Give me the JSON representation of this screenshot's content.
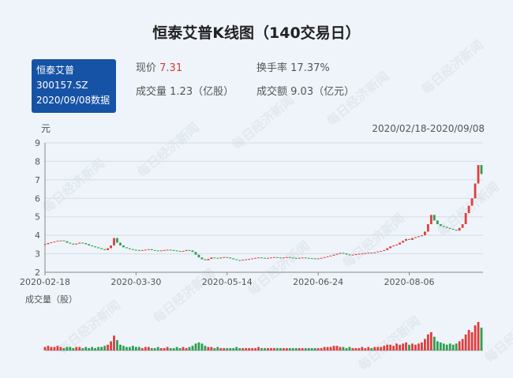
{
  "header": {
    "title": "恒泰艾普K线图（140交易日）",
    "badge": [
      "恒泰艾普",
      "300157.SZ",
      "2020/09/08数据"
    ],
    "info": [
      {
        "label": "现价",
        "value": "7.31"
      },
      {
        "label": "换手率",
        "value": "17.37%"
      },
      {
        "label": "成交量",
        "value": "1.23（亿股）"
      },
      {
        "label": "成交额",
        "value": "9.03（亿元）"
      }
    ]
  },
  "watermark": "每日经济新闻",
  "chart_data": {
    "type": "candlestick",
    "y_label": "元",
    "range_label": "2020/02/18-2020/09/08",
    "volume_label": "成交量（股）",
    "up_color": "#e03c3c",
    "down_color": "#2e9e4f",
    "ylim": [
      2,
      9
    ],
    "yticks": [
      2,
      3,
      4,
      5,
      6,
      7,
      8,
      9
    ],
    "grid": true,
    "volume_ylim": [
      0,
      25
    ],
    "categories": [
      "2020-02-18",
      null,
      null,
      null,
      null,
      null,
      null,
      null,
      null,
      null,
      null,
      null,
      null,
      null,
      null,
      null,
      null,
      null,
      null,
      null,
      null,
      null,
      null,
      null,
      null,
      null,
      null,
      null,
      null,
      "2020-03-30",
      null,
      null,
      null,
      null,
      null,
      null,
      null,
      null,
      null,
      null,
      null,
      null,
      null,
      null,
      null,
      null,
      null,
      null,
      null,
      null,
      null,
      null,
      null,
      null,
      null,
      null,
      null,
      null,
      "2020-05-14",
      null,
      null,
      null,
      null,
      null,
      null,
      null,
      null,
      null,
      null,
      null,
      null,
      null,
      null,
      null,
      null,
      null,
      null,
      null,
      null,
      null,
      null,
      null,
      null,
      null,
      null,
      null,
      null,
      "2020-06-24",
      null,
      null,
      null,
      null,
      null,
      null,
      null,
      null,
      null,
      null,
      null,
      null,
      null,
      null,
      null,
      null,
      null,
      null,
      null,
      null,
      null,
      null,
      null,
      null,
      null,
      null,
      null,
      null,
      "2020-08-06",
      null,
      null,
      null,
      null,
      null,
      null,
      null,
      null,
      null,
      null,
      null,
      null,
      null,
      null,
      null,
      null,
      null,
      null,
      null,
      null,
      null,
      null,
      null
    ],
    "open": [
      3.48,
      3.52,
      3.58,
      3.62,
      3.66,
      3.7,
      3.72,
      3.68,
      3.6,
      3.55,
      3.5,
      3.55,
      3.6,
      3.58,
      3.52,
      3.45,
      3.4,
      3.35,
      3.3,
      3.25,
      3.2,
      3.3,
      3.45,
      3.85,
      3.6,
      3.45,
      3.35,
      3.3,
      3.25,
      3.22,
      3.2,
      3.18,
      3.2,
      3.22,
      3.25,
      3.2,
      3.18,
      3.15,
      3.18,
      3.2,
      3.22,
      3.2,
      3.18,
      3.15,
      3.12,
      3.15,
      3.2,
      3.18,
      3.1,
      2.95,
      2.8,
      2.7,
      2.65,
      2.72,
      2.8,
      2.78,
      2.75,
      2.8,
      2.82,
      2.8,
      2.75,
      2.7,
      2.66,
      2.65,
      2.68,
      2.7,
      2.72,
      2.75,
      2.78,
      2.8,
      2.78,
      2.76,
      2.78,
      2.8,
      2.82,
      2.8,
      2.78,
      2.8,
      2.82,
      2.8,
      2.78,
      2.76,
      2.78,
      2.8,
      2.78,
      2.76,
      2.75,
      2.74,
      2.75,
      2.78,
      2.82,
      2.86,
      2.9,
      2.95,
      3.0,
      3.05,
      3.02,
      2.96,
      2.92,
      2.95,
      2.98,
      3.0,
      3.02,
      3.04,
      3.06,
      3.05,
      3.08,
      3.12,
      3.15,
      3.2,
      3.3,
      3.4,
      3.45,
      3.5,
      3.6,
      3.7,
      3.8,
      3.75,
      3.85,
      3.9,
      3.95,
      4.0,
      4.2,
      4.6,
      5.1,
      4.8,
      4.6,
      4.5,
      4.45,
      4.4,
      4.35,
      4.3,
      4.25,
      4.4,
      4.6,
      5.2,
      5.6,
      6.0,
      6.8,
      7.8
    ],
    "close": [
      3.52,
      3.58,
      3.62,
      3.66,
      3.7,
      3.72,
      3.68,
      3.6,
      3.55,
      3.5,
      3.55,
      3.6,
      3.58,
      3.52,
      3.45,
      3.4,
      3.35,
      3.3,
      3.25,
      3.2,
      3.3,
      3.45,
      3.85,
      3.6,
      3.45,
      3.35,
      3.3,
      3.25,
      3.22,
      3.2,
      3.18,
      3.2,
      3.22,
      3.25,
      3.2,
      3.18,
      3.15,
      3.18,
      3.2,
      3.22,
      3.2,
      3.18,
      3.15,
      3.12,
      3.15,
      3.2,
      3.18,
      3.1,
      2.95,
      2.8,
      2.7,
      2.65,
      2.72,
      2.8,
      2.78,
      2.75,
      2.8,
      2.82,
      2.8,
      2.75,
      2.7,
      2.66,
      2.65,
      2.68,
      2.7,
      2.72,
      2.75,
      2.78,
      2.8,
      2.78,
      2.76,
      2.78,
      2.8,
      2.82,
      2.8,
      2.78,
      2.8,
      2.82,
      2.8,
      2.78,
      2.76,
      2.78,
      2.8,
      2.78,
      2.76,
      2.75,
      2.74,
      2.75,
      2.78,
      2.82,
      2.86,
      2.9,
      2.95,
      3.0,
      3.05,
      3.02,
      2.96,
      2.92,
      2.95,
      2.98,
      3.0,
      3.02,
      3.04,
      3.06,
      3.05,
      3.08,
      3.12,
      3.15,
      3.2,
      3.3,
      3.4,
      3.45,
      3.5,
      3.6,
      3.7,
      3.8,
      3.75,
      3.85,
      3.9,
      3.95,
      4.0,
      4.2,
      4.6,
      5.1,
      4.8,
      4.6,
      4.5,
      4.45,
      4.4,
      4.35,
      4.3,
      4.25,
      4.4,
      4.6,
      5.2,
      5.6,
      6.0,
      6.8,
      7.8,
      7.31
    ],
    "volume": [
      3,
      4,
      3,
      3,
      4,
      3,
      2,
      3,
      3,
      2,
      3,
      3,
      2,
      3,
      2,
      3,
      2,
      3,
      3,
      4,
      5,
      8,
      13,
      9,
      5,
      4,
      3,
      3,
      4,
      3,
      3,
      2,
      3,
      3,
      2,
      2,
      3,
      2,
      2,
      3,
      2,
      2,
      3,
      2,
      3,
      2,
      3,
      4,
      6,
      7,
      6,
      4,
      3,
      3,
      2,
      3,
      2,
      2,
      2,
      2,
      2,
      3,
      2,
      2,
      2,
      2,
      2,
      2,
      3,
      2,
      2,
      2,
      2,
      2,
      2,
      2,
      2,
      2,
      2,
      2,
      2,
      2,
      2,
      2,
      2,
      2,
      2,
      2,
      2,
      3,
      3,
      3,
      4,
      4,
      3,
      3,
      2,
      3,
      2,
      2,
      2,
      3,
      2,
      3,
      2,
      3,
      3,
      3,
      4,
      5,
      5,
      4,
      6,
      5,
      6,
      7,
      5,
      6,
      5,
      6,
      7,
      10,
      14,
      16,
      12,
      8,
      7,
      6,
      5,
      6,
      5,
      6,
      8,
      10,
      14,
      18,
      16,
      22,
      25,
      20
    ]
  }
}
